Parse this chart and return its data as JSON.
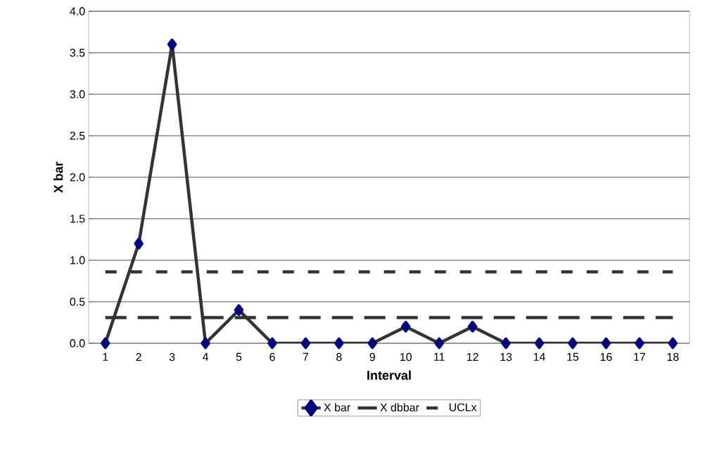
{
  "chart_data": {
    "type": "line",
    "xlabel": "Interval",
    "ylabel": "X bar",
    "categories": [
      "1",
      "2",
      "3",
      "4",
      "5",
      "6",
      "7",
      "8",
      "9",
      "10",
      "11",
      "12",
      "13",
      "14",
      "15",
      "16",
      "17",
      "18"
    ],
    "series": [
      {
        "name": "X bar",
        "color": "#333333",
        "marker": "diamond",
        "line_style": "solid",
        "values": [
          0,
          1.2,
          3.6,
          0,
          0.4,
          0,
          0,
          0,
          0,
          0.2,
          0,
          0.2,
          0,
          0,
          0,
          0,
          0,
          0
        ]
      },
      {
        "name": "X dbbar",
        "color": "#333333",
        "marker": "none",
        "line_style": "dashed",
        "values": [
          0.31,
          0.31,
          0.31,
          0.31,
          0.31,
          0.31,
          0.31,
          0.31,
          0.31,
          0.31,
          0.31,
          0.31,
          0.31,
          0.31,
          0.31,
          0.31,
          0.31,
          0.31
        ]
      },
      {
        "name": "UCLx",
        "color": "#333333",
        "marker": "none",
        "line_style": "dashed",
        "values": [
          0.86,
          0.86,
          0.86,
          0.86,
          0.86,
          0.86,
          0.86,
          0.86,
          0.86,
          0.86,
          0.86,
          0.86,
          0.86,
          0.86,
          0.86,
          0.86,
          0.86,
          0.86
        ]
      }
    ],
    "ylim": [
      0,
      4
    ],
    "yticks": [
      {
        "value": 0,
        "label": "0.0"
      },
      {
        "value": 0.5,
        "label": "0.5"
      },
      {
        "value": 1,
        "label": "1.0"
      },
      {
        "value": 1.5,
        "label": "1.5"
      },
      {
        "value": 2,
        "label": "2.0"
      },
      {
        "value": 2.5,
        "label": "2.5"
      },
      {
        "value": 3,
        "label": "3.0"
      },
      {
        "value": 3.5,
        "label": "3.5"
      },
      {
        "value": 4,
        "label": "4.0"
      }
    ],
    "grid": "y",
    "legend": "bottom"
  }
}
